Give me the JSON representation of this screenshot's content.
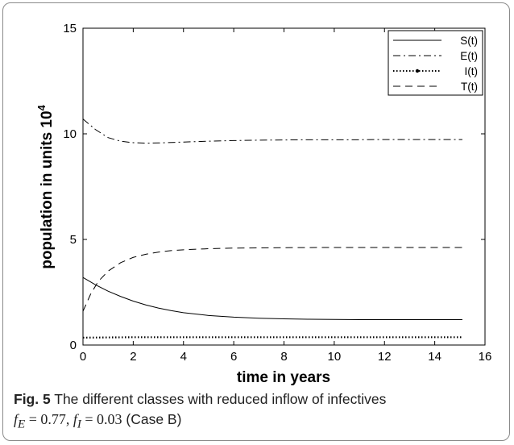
{
  "chart_data": {
    "type": "line",
    "xlabel": "time in years",
    "ylabel": "population in units 10",
    "ylabel_exponent": "4",
    "xlim": [
      0,
      16
    ],
    "ylim": [
      0,
      15
    ],
    "x_ticks": [
      "0",
      "2",
      "4",
      "6",
      "8",
      "10",
      "12",
      "14",
      "16"
    ],
    "y_ticks": [
      "0",
      "5",
      "10",
      "15"
    ],
    "grid": false,
    "legend_position": "top-right",
    "series": [
      {
        "name": "S(t)",
        "style": "solid",
        "x": [
          0,
          0.5,
          1,
          1.5,
          2,
          2.5,
          3,
          3.5,
          4,
          5,
          6,
          7,
          8,
          9,
          10,
          11,
          12,
          13,
          14,
          15.1
        ],
        "y": [
          3.2,
          2.85,
          2.55,
          2.3,
          2.08,
          1.9,
          1.75,
          1.63,
          1.53,
          1.4,
          1.32,
          1.27,
          1.24,
          1.22,
          1.21,
          1.2,
          1.2,
          1.2,
          1.2,
          1.2
        ]
      },
      {
        "name": "E(t)",
        "style": "dash-dot",
        "x": [
          0,
          0.5,
          1,
          1.5,
          2,
          2.5,
          3,
          4,
          5,
          6,
          7,
          8,
          9,
          10,
          11,
          12,
          13,
          14,
          15.1
        ],
        "y": [
          10.7,
          10.2,
          9.82,
          9.65,
          9.58,
          9.56,
          9.57,
          9.61,
          9.65,
          9.68,
          9.7,
          9.71,
          9.72,
          9.72,
          9.72,
          9.73,
          9.73,
          9.73,
          9.73
        ]
      },
      {
        "name": "I(t)",
        "style": "dotted-marker",
        "x": [
          0,
          1,
          2,
          3,
          4,
          5,
          6,
          7,
          8,
          9,
          10,
          11,
          12,
          13,
          14,
          15.1
        ],
        "y": [
          0.35,
          0.36,
          0.37,
          0.37,
          0.37,
          0.37,
          0.37,
          0.37,
          0.37,
          0.37,
          0.37,
          0.37,
          0.37,
          0.37,
          0.37,
          0.37
        ]
      },
      {
        "name": "T(t)",
        "style": "dashed",
        "x": [
          0,
          0.3,
          0.6,
          1,
          1.5,
          2,
          2.5,
          3,
          3.5,
          4,
          5,
          6,
          7,
          8,
          10,
          12,
          14,
          15.1
        ],
        "y": [
          1.6,
          2.4,
          3.0,
          3.5,
          3.9,
          4.15,
          4.3,
          4.4,
          4.47,
          4.51,
          4.56,
          4.59,
          4.6,
          4.61,
          4.62,
          4.62,
          4.62,
          4.62
        ]
      }
    ]
  },
  "caption": {
    "label": "Fig. 5",
    "text": "The different classes with reduced inflow of infectives",
    "formula_fE": "0.77",
    "formula_fI": "0.03",
    "case": "(Case B)"
  }
}
